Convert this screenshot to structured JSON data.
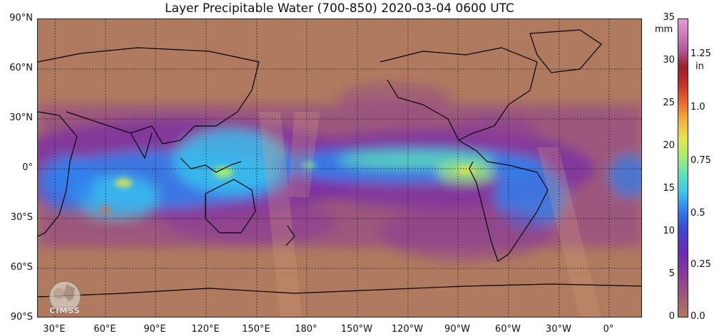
{
  "title": "Layer Precipitable Water (700-850)  2020-03-04 0600 UTC",
  "lat_labels": [
    "90°N",
    "60°N",
    "30°N",
    "0°",
    "30°S",
    "60°S",
    "90°S"
  ],
  "lon_labels": [
    "30°E",
    "60°E",
    "90°E",
    "120°E",
    "150°E",
    "180°",
    "150°W",
    "120°W",
    "90°W",
    "60°W",
    "30°W",
    "0°"
  ],
  "colorbar": {
    "units_left": "mm",
    "units_right": "in",
    "mm_ticks": [
      "35",
      "30",
      "25",
      "20",
      "15",
      "10",
      "5",
      "0"
    ],
    "in_ticks": [
      "1.25",
      "1.0",
      "0.75",
      "0.5",
      "0.25",
      "0.0"
    ],
    "range_mm": [
      0,
      35
    ],
    "colors": {
      "dry": "#b07a5e",
      "low": "#8a3a98",
      "mid": "#2f82f0",
      "moist": "#5fe2b8",
      "high": "#e8e64a",
      "max": "#e59ad8"
    }
  },
  "logo": {
    "text": "CIMSS"
  }
}
